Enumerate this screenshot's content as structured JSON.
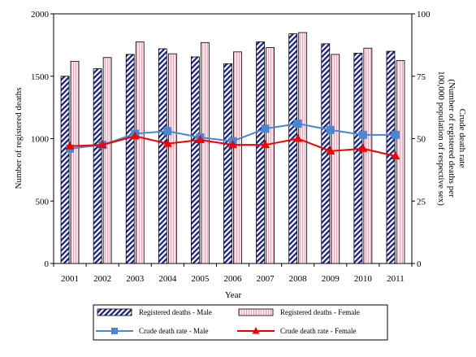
{
  "chart_data": {
    "type": "bar+line",
    "categories": [
      "2001",
      "2002",
      "2003",
      "2004",
      "2005",
      "2006",
      "2007",
      "2008",
      "2009",
      "2010",
      "2011"
    ],
    "bar_series": [
      {
        "name": "Registered deaths - Male",
        "values": [
          1500,
          1560,
          1675,
          1720,
          1655,
          1600,
          1775,
          1840,
          1760,
          1685,
          1700
        ],
        "pattern": "diagonal-stripes",
        "color": "#1a237e"
      },
      {
        "name": "Registered deaths - Female",
        "values": [
          1620,
          1650,
          1775,
          1680,
          1770,
          1695,
          1730,
          1850,
          1675,
          1725,
          1625
        ],
        "pattern": "light-pink-stripes",
        "color": "#f2c6d4"
      }
    ],
    "line_series": [
      {
        "name": "Crude death rate - Male",
        "values": [
          46,
          47.5,
          52,
          53,
          50.5,
          49,
          54,
          56,
          53.5,
          51.5,
          51.5
        ],
        "color": "#4a86d4",
        "marker": "square"
      },
      {
        "name": "Crude death rate - Female",
        "values": [
          47,
          47.5,
          51,
          48,
          49.5,
          47.5,
          47.5,
          50,
          45,
          46,
          43
        ],
        "color": "#ee0000",
        "marker": "triangle"
      }
    ],
    "xlabel": "Year",
    "ylabel_left": "Number of registered deaths",
    "ylabel_right": "Crude death rate\n(Number of registered deaths per\n100,000 population of respective sex)",
    "ylim_left": [
      0,
      2000
    ],
    "yticks_left": [
      "0",
      "500",
      "1000",
      "1500",
      "2000"
    ],
    "ylim_right": [
      0,
      100
    ],
    "yticks_right": [
      "0",
      "25",
      "50",
      "75",
      "100"
    ],
    "grid": false,
    "legend_position": "bottom"
  }
}
